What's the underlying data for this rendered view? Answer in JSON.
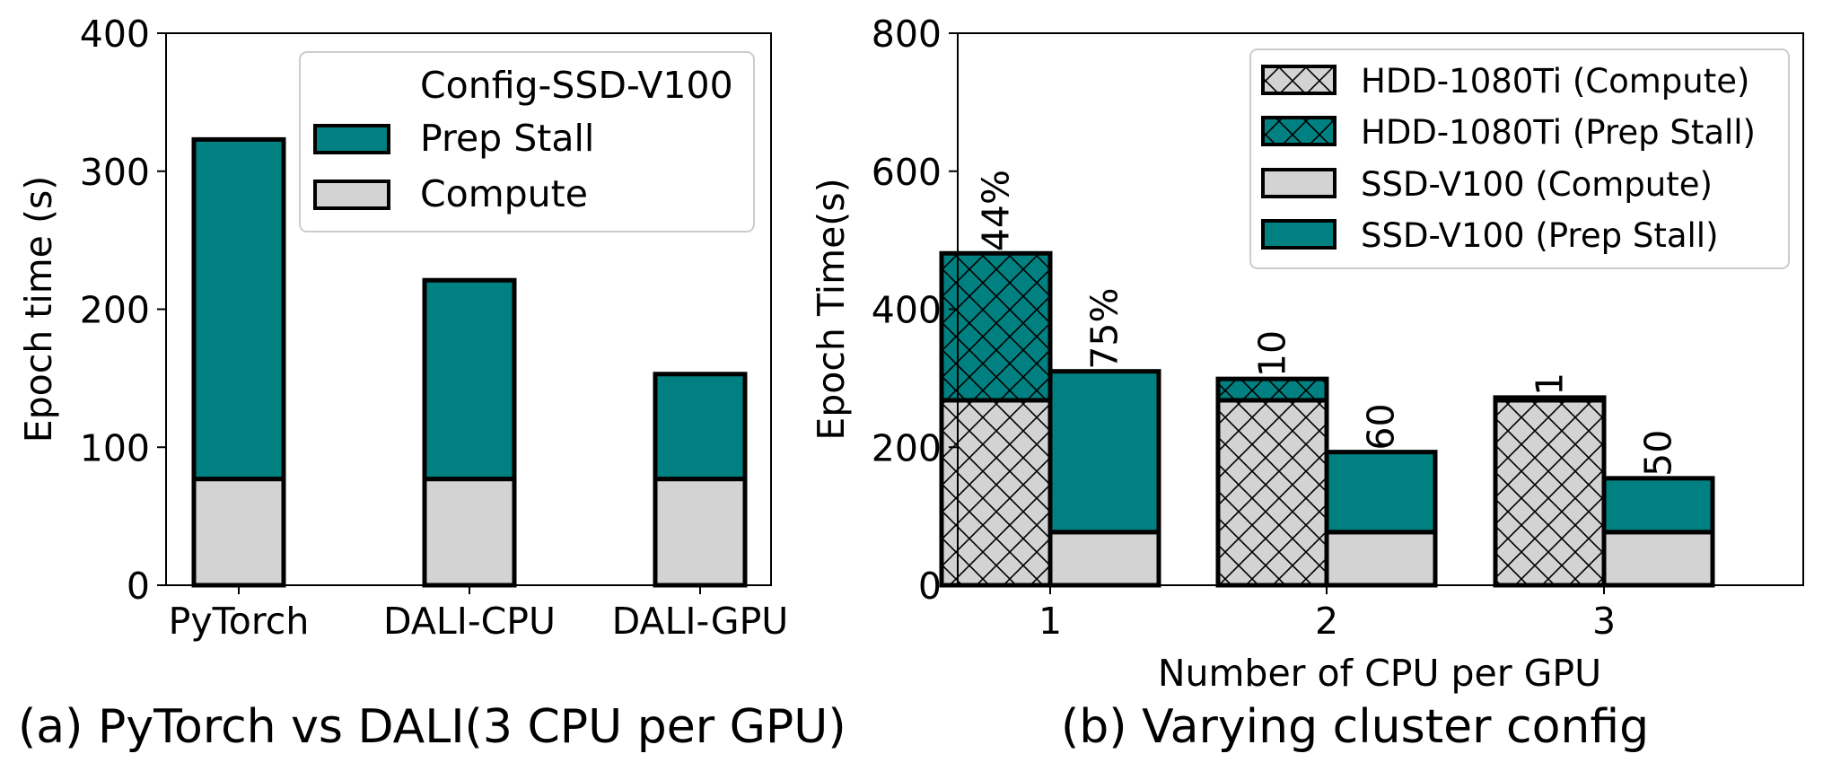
{
  "colors": {
    "teal": "#008080",
    "gray": "#d3d3d3",
    "edge": "#000000"
  },
  "captions": {
    "a": "(a) PyTorch vs DALI(3 CPU per GPU)",
    "b": "(b) Varying cluster config"
  },
  "chart_data": [
    {
      "type": "bar",
      "stacked": true,
      "title": "",
      "xlabel": "",
      "ylabel": "Epoch time (s)",
      "ylim": [
        0,
        400
      ],
      "yticks": [
        0,
        100,
        200,
        300,
        400
      ],
      "categories": [
        "PyTorch",
        "DALI-CPU",
        "DALI-GPU"
      ],
      "series": [
        {
          "name": "Compute",
          "values": [
            77,
            77,
            77
          ],
          "color": "#d3d3d3"
        },
        {
          "name": "Prep Stall",
          "values": [
            246,
            144,
            76
          ],
          "color": "#008080"
        }
      ],
      "legend": {
        "title": "Config-SSD-V100",
        "entries": [
          "Prep Stall",
          "Compute"
        ],
        "position": "upper right"
      }
    },
    {
      "type": "bar",
      "stacked": true,
      "grouped": true,
      "title": "",
      "xlabel": "Number of CPU per GPU",
      "ylabel": "Epoch Time(s)",
      "ylim": [
        0,
        800
      ],
      "yticks": [
        0,
        200,
        400,
        600,
        800
      ],
      "categories": [
        "1",
        "2",
        "3"
      ],
      "groups": [
        {
          "name": "HDD-1080Ti",
          "hatch": "cross",
          "compute": [
            268,
            268,
            268
          ],
          "prep_stall": [
            213,
            31,
            4
          ],
          "annotations": [
            "44%",
            "10",
            "1"
          ]
        },
        {
          "name": "SSD-V100",
          "hatch": "none",
          "compute": [
            77,
            77,
            77
          ],
          "prep_stall": [
            233,
            116,
            78
          ],
          "annotations": [
            "75%",
            "60",
            "50"
          ]
        }
      ],
      "legend": {
        "entries": [
          "HDD-1080Ti (Compute)",
          "HDD-1080Ti (Prep Stall)",
          "SSD-V100 (Compute)",
          "SSD-V100 (Prep Stall)"
        ],
        "position": "upper right"
      }
    }
  ]
}
